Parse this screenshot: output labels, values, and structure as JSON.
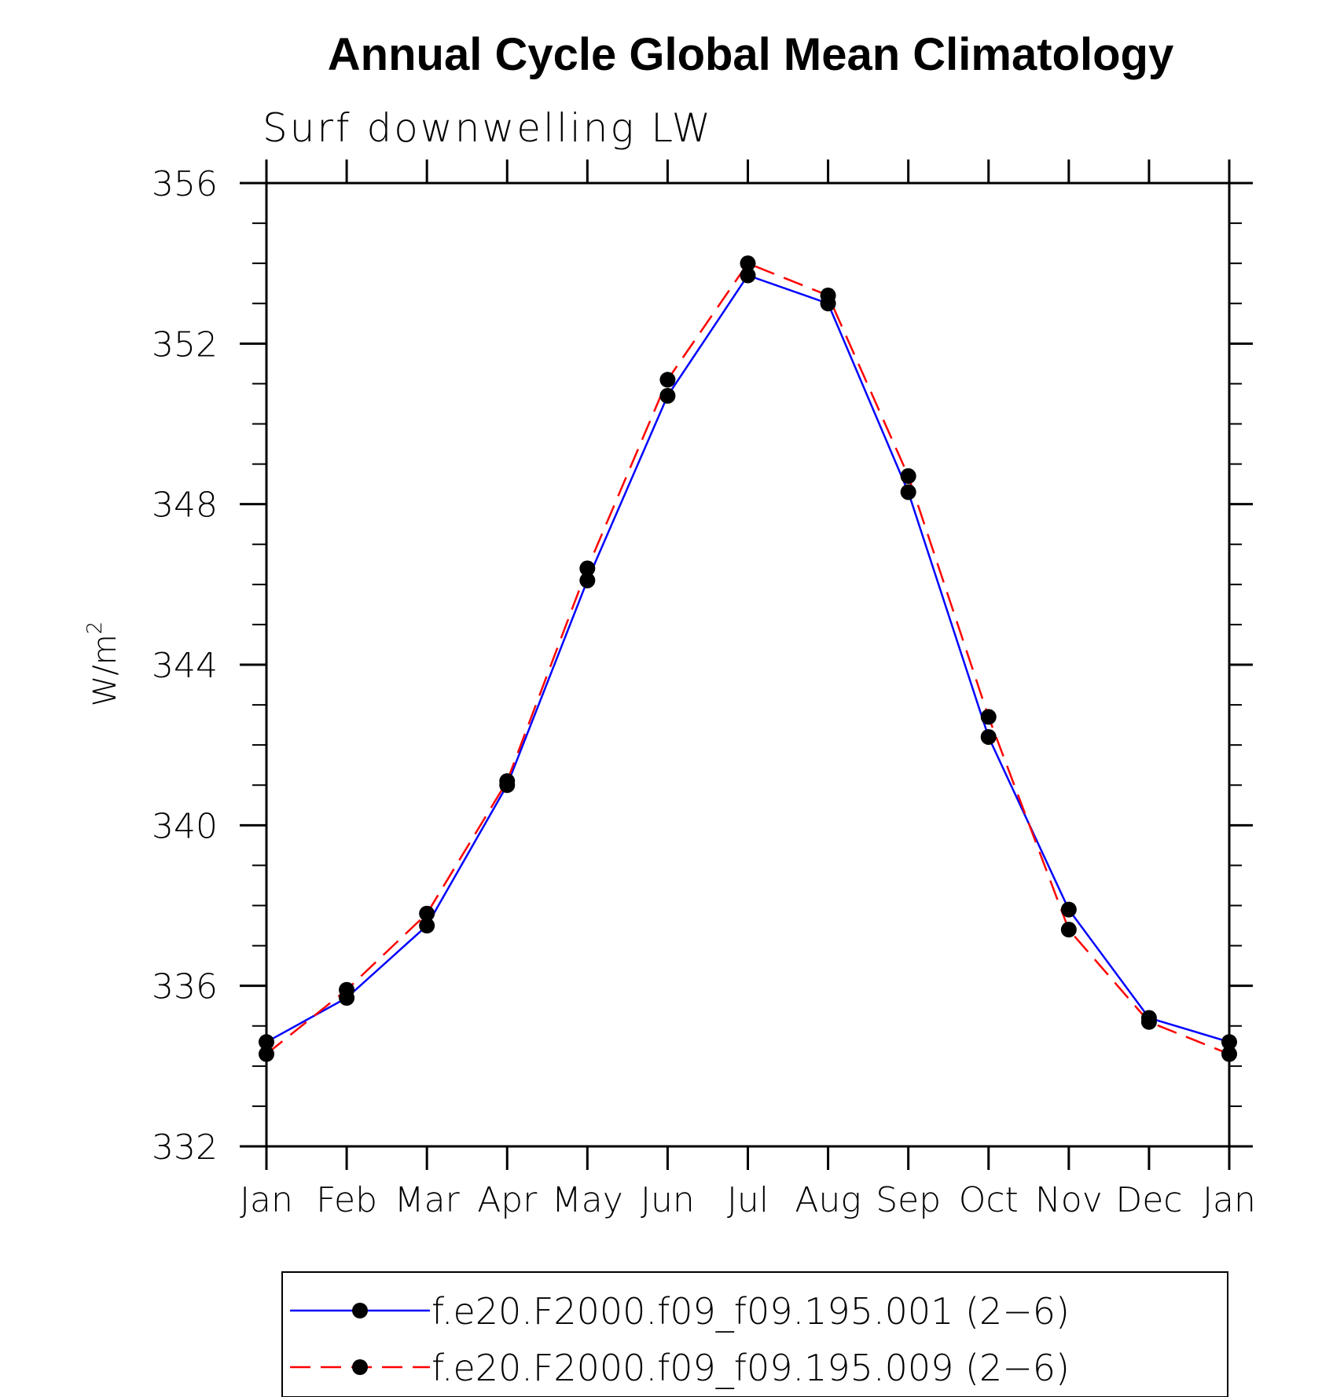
{
  "chart_data": {
    "type": "line",
    "title": "Annual Cycle Global Mean Climatology",
    "subtitle": "Surf downwelling LW",
    "xlabel": "",
    "ylabel": "W/m",
    "ylabel_superscript": "2",
    "categories": [
      "Jan",
      "Feb",
      "Mar",
      "Apr",
      "May",
      "Jun",
      "Jul",
      "Aug",
      "Sep",
      "Oct",
      "Nov",
      "Dec",
      "Jan"
    ],
    "ylim": [
      332,
      356
    ],
    "yticks": [
      332,
      336,
      340,
      344,
      348,
      352,
      356
    ],
    "y_minor_step": 1,
    "grid": false,
    "legend_position": "bottom",
    "series": [
      {
        "name": "f.e20.F2000.f09_f09.195.001 (2−6)",
        "color": "#0000ff",
        "style": "solid",
        "marker": "filled-circle",
        "values": [
          334.6,
          335.7,
          337.5,
          341.0,
          346.1,
          350.7,
          353.7,
          353.0,
          348.3,
          342.2,
          337.9,
          335.2,
          334.6
        ]
      },
      {
        "name": "f.e20.F2000.f09_f09.195.009 (2−6)",
        "color": "#ff0000",
        "style": "dashed",
        "marker": "filled-circle",
        "values": [
          334.3,
          335.9,
          337.8,
          341.1,
          346.4,
          351.1,
          354.0,
          353.2,
          348.7,
          342.7,
          337.4,
          335.1,
          334.3
        ]
      }
    ]
  }
}
